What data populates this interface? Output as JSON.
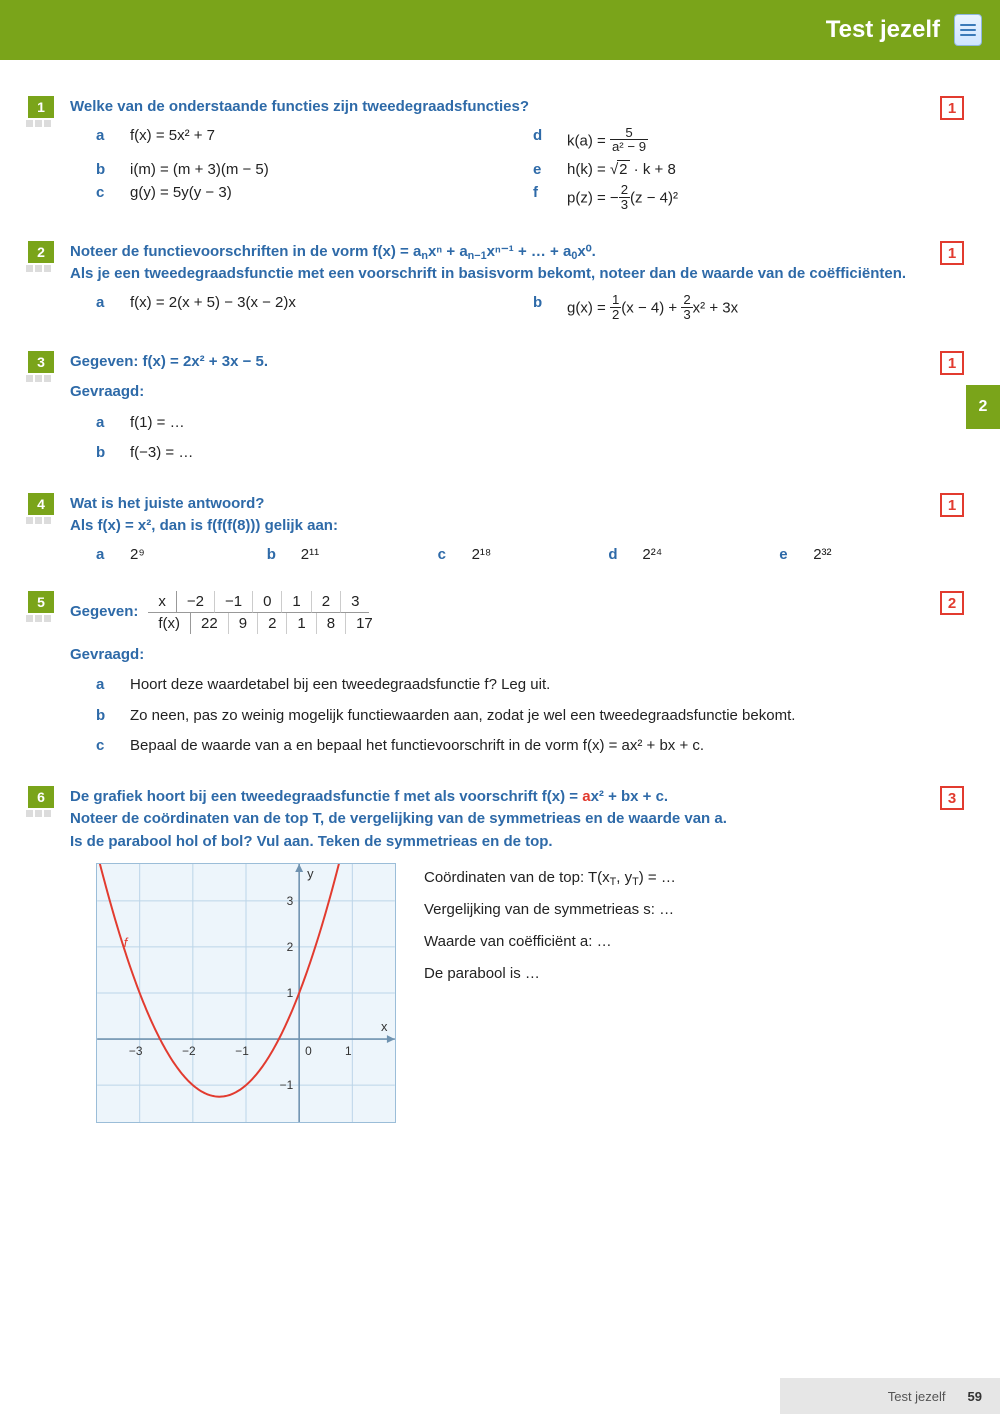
{
  "header": {
    "title": "Test jezelf"
  },
  "sideTab": "2",
  "footer": {
    "label": "Test jezelf",
    "page": "59"
  },
  "ex1": {
    "num": "1",
    "marks": "1",
    "question": "Welke van de onderstaande functies zijn tweedegraadsfuncties?",
    "items": {
      "a": "f(x) = 5x² + 7",
      "b": "i(m) = (m + 3)(m − 5)",
      "c": "g(y) = 5y(y − 3)",
      "d_pre": "k(a) = ",
      "d_num": "5",
      "d_den": "a² − 9",
      "e_pre": "h(k) = ",
      "e_rad": "2",
      "e_post": " · k + 8",
      "f_pre": "p(z) = −",
      "f_num": "2",
      "f_den": "3",
      "f_post": "(z − 4)²"
    }
  },
  "ex2": {
    "num": "2",
    "marks": "1",
    "q_line1_pre": "Noteer de functievoorschriften in de vorm f(x) = a",
    "q_line1_mid1": "xⁿ + a",
    "q_line1_mid2": "xⁿ⁻¹ + … + a",
    "q_line1_end": "x⁰.",
    "sub_n": "n",
    "sub_nm1": "n−1",
    "sub_0": "0",
    "q_line2": "Als je een tweedegraadsfunctie met een voorschrift in basisvorm bekomt, noteer dan de waarde van de coëfficiënten.",
    "a": "f(x) = 2(x + 5) − 3(x − 2)x",
    "b_pre": "g(x) = ",
    "b_f1n": "1",
    "b_f1d": "2",
    "b_mid": "(x − 4) + ",
    "b_f2n": "2",
    "b_f2d": "3",
    "b_post": "x² + 3x"
  },
  "ex3": {
    "num": "3",
    "marks": "1",
    "given": "Gegeven: f(x) = 2x² + 3x − 5.",
    "asked": "Gevraagd:",
    "a": "f(1) = …",
    "b": "f(−3) = …"
  },
  "ex4": {
    "num": "4",
    "marks": "1",
    "q1": "Wat is het juiste antwoord?",
    "q2": "Als f(x) = x², dan is f(f(f(8))) gelijk aan:",
    "opts": {
      "a": "2⁹",
      "b": "2¹¹",
      "c": "2¹⁸",
      "d": "2²⁴",
      "e": "2³²"
    }
  },
  "ex5": {
    "num": "5",
    "marks": "2",
    "given": "Gegeven:",
    "table": {
      "xlabel": "x",
      "flabel": "f(x)",
      "x": [
        "−2",
        "−1",
        "0",
        "1",
        "2",
        "3"
      ],
      "f": [
        "22",
        "9",
        "2",
        "1",
        "8",
        "17"
      ]
    },
    "asked": "Gevraagd:",
    "a": "Hoort deze waardetabel bij een tweedegraadsfunctie f? Leg uit.",
    "b": "Zo neen, pas zo weinig mogelijk functiewaarden aan, zodat je wel een tweedegraadsfunctie bekomt.",
    "c": "Bepaal de waarde van a en bepaal het functievoorschrift in de vorm f(x) = ax² + bx + c."
  },
  "ex6": {
    "num": "6",
    "marks": "3",
    "q1_pre": "De grafiek hoort bij een tweedegraadsfunctie f met als voorschrift f(x) = ",
    "q1_a": "a",
    "q1_post": "x² + bx + c.",
    "q2": "Noteer de coördinaten van de top T, de vergelijking van de symmetrieas en de waarde van a.",
    "q3": "Is de parabool hol of bol? Vul aan. Teken de symmetrieas en de top.",
    "graph": {
      "xticks": [
        "−3",
        "−2",
        "−1",
        "0",
        "1"
      ],
      "yticks": [
        "−1",
        "1",
        "2",
        "3"
      ],
      "xlabel": "x",
      "ylabel": "y",
      "curve_label": "f",
      "bg": "#edf5fb",
      "border": "#9bbdd8",
      "grid": "#bcd5e8",
      "axis": "#7093b0",
      "curve": "#e23b2f",
      "vertex_x": -1.5,
      "vertex_y": -1.25,
      "coef_a": 1.0,
      "xlim": [
        -3.8,
        1.8
      ],
      "ylim": [
        -1.8,
        3.8
      ]
    },
    "answers": {
      "r1_pre": "Coördinaten van de top:  T(x",
      "r1_sub1": "T",
      "r1_mid": ", y",
      "r1_sub2": "T",
      "r1_post": ") = …",
      "r2": "Vergelijking van de symmetrieas s: …",
      "r3": "Waarde van coëfficiënt a: …",
      "r4": "De parabool is …"
    }
  }
}
